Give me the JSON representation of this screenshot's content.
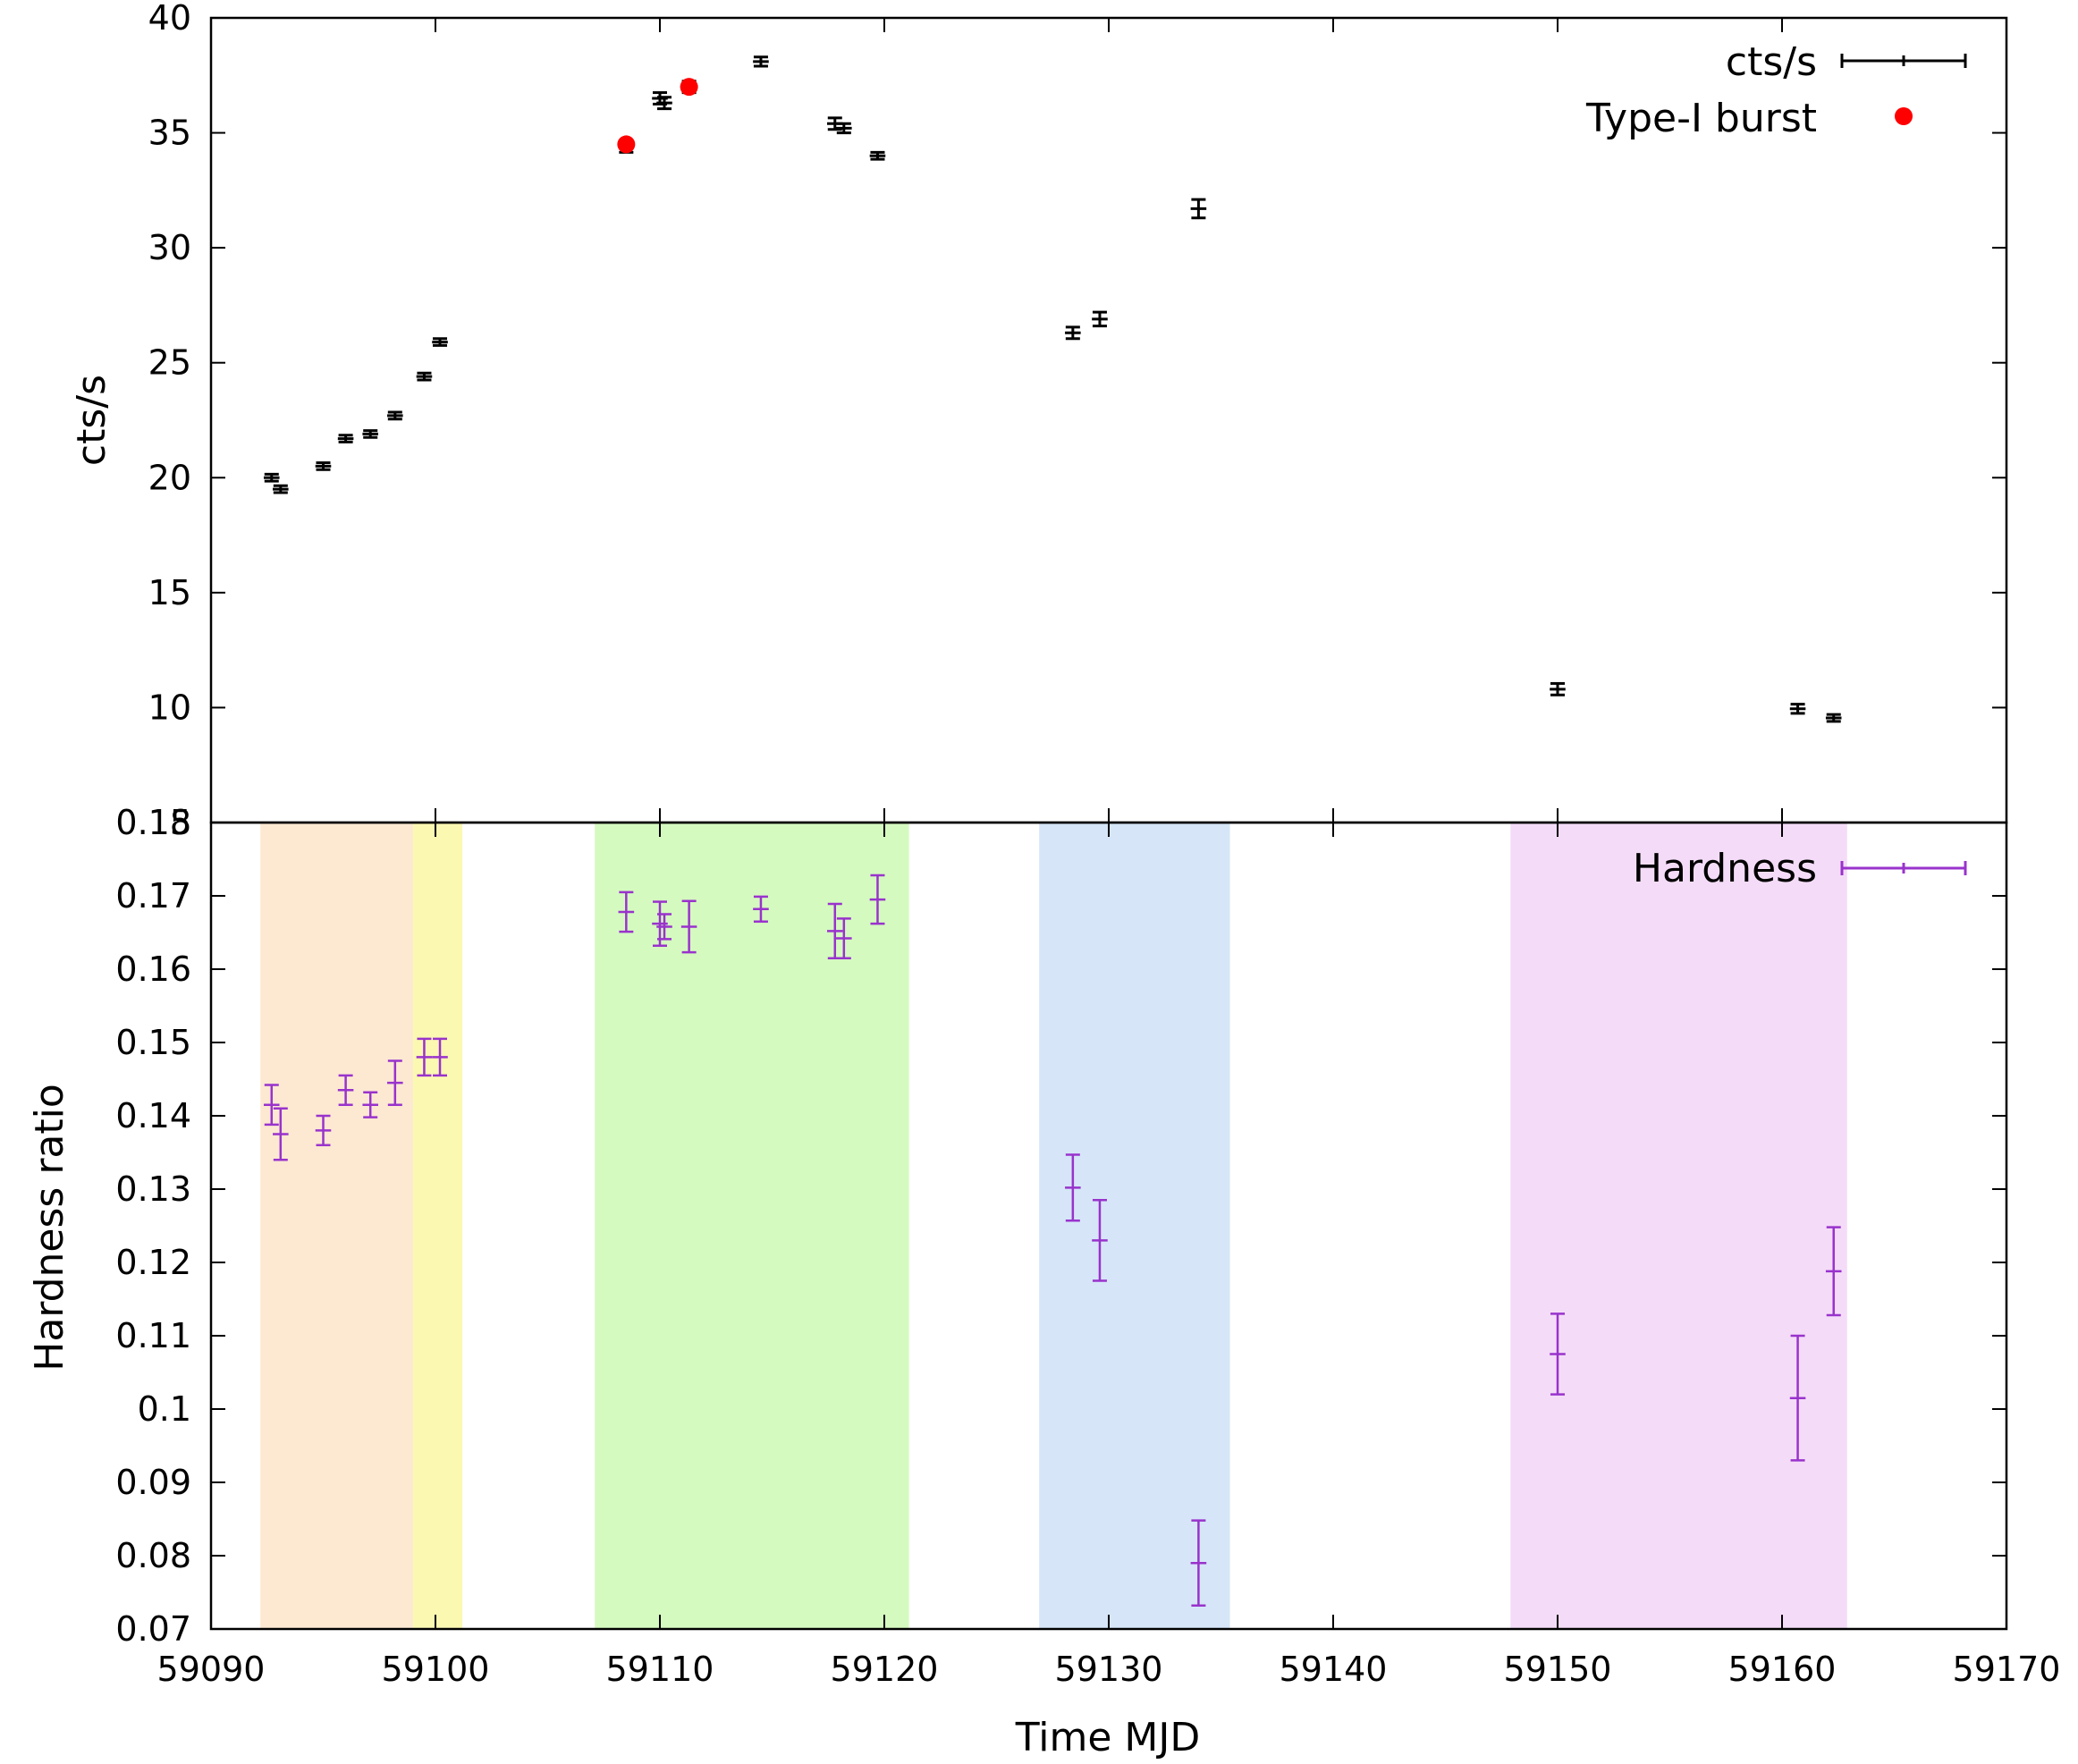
{
  "chart_data": [
    {
      "panel": "top",
      "type": "scatter",
      "ylabel": "cts/s",
      "ylim": [
        5,
        40
      ],
      "yticks": [
        5,
        10,
        15,
        20,
        25,
        30,
        35,
        40
      ],
      "xlim": [
        59090,
        59170
      ],
      "legend_position": "top-right",
      "series": [
        {
          "name": "cts/s",
          "color": "#000000",
          "marker": "errorbar",
          "points": [
            {
              "x": 59092.7,
              "y": 20.0,
              "xerr": 0.35,
              "yerr": 0.15
            },
            {
              "x": 59093.1,
              "y": 19.5,
              "xerr": 0.35,
              "yerr": 0.15
            },
            {
              "x": 59095.0,
              "y": 20.5,
              "xerr": 0.35,
              "yerr": 0.15
            },
            {
              "x": 59096.0,
              "y": 21.7,
              "xerr": 0.35,
              "yerr": 0.15
            },
            {
              "x": 59097.1,
              "y": 21.9,
              "xerr": 0.35,
              "yerr": 0.15
            },
            {
              "x": 59098.2,
              "y": 22.7,
              "xerr": 0.35,
              "yerr": 0.15
            },
            {
              "x": 59099.5,
              "y": 24.4,
              "xerr": 0.35,
              "yerr": 0.15
            },
            {
              "x": 59100.2,
              "y": 25.9,
              "xerr": 0.35,
              "yerr": 0.15
            },
            {
              "x": 59108.5,
              "y": 34.4,
              "xerr": 0.35,
              "yerr": 0.25
            },
            {
              "x": 59110.0,
              "y": 36.5,
              "xerr": 0.35,
              "yerr": 0.25
            },
            {
              "x": 59110.2,
              "y": 36.3,
              "xerr": 0.35,
              "yerr": 0.25
            },
            {
              "x": 59111.3,
              "y": 37.0,
              "xerr": 0.35,
              "yerr": 0.25
            },
            {
              "x": 59114.5,
              "y": 38.1,
              "xerr": 0.35,
              "yerr": 0.2
            },
            {
              "x": 59117.8,
              "y": 35.4,
              "xerr": 0.35,
              "yerr": 0.25
            },
            {
              "x": 59118.2,
              "y": 35.2,
              "xerr": 0.35,
              "yerr": 0.2
            },
            {
              "x": 59119.7,
              "y": 34.0,
              "xerr": 0.35,
              "yerr": 0.15
            },
            {
              "x": 59128.4,
              "y": 26.3,
              "xerr": 0.35,
              "yerr": 0.25
            },
            {
              "x": 59129.6,
              "y": 26.9,
              "xerr": 0.35,
              "yerr": 0.3
            },
            {
              "x": 59134.0,
              "y": 31.7,
              "xerr": 0.35,
              "yerr": 0.4
            },
            {
              "x": 59150.0,
              "y": 10.8,
              "xerr": 0.35,
              "yerr": 0.25
            },
            {
              "x": 59160.7,
              "y": 9.95,
              "xerr": 0.35,
              "yerr": 0.2
            },
            {
              "x": 59162.3,
              "y": 9.55,
              "xerr": 0.35,
              "yerr": 0.15
            }
          ]
        },
        {
          "name": "Type-I burst",
          "color": "#ff0000",
          "marker": "circle",
          "points": [
            {
              "x": 59108.5,
              "y": 34.5
            },
            {
              "x": 59111.3,
              "y": 37.0
            }
          ]
        }
      ]
    },
    {
      "panel": "bottom",
      "type": "scatter",
      "xlabel": "Time MJD",
      "ylabel": "Hardness ratio",
      "xlim": [
        59090,
        59170
      ],
      "ylim": [
        0.07,
        0.18
      ],
      "xticks": [
        59090,
        59100,
        59110,
        59120,
        59130,
        59140,
        59150,
        59160,
        59170
      ],
      "yticks": [
        0.07,
        0.08,
        0.09,
        0.1,
        0.11,
        0.12,
        0.13,
        0.14,
        0.15,
        0.16,
        0.17,
        0.18
      ],
      "legend_position": "top-right",
      "shaded_regions": [
        {
          "x0": 59092.2,
          "x1": 59099.0,
          "color": "#fde9d2"
        },
        {
          "x0": 59099.0,
          "x1": 59101.2,
          "color": "#fbf8b2"
        },
        {
          "x0": 59107.1,
          "x1": 59121.1,
          "color": "#d5fac0"
        },
        {
          "x0": 59126.9,
          "x1": 59135.4,
          "color": "#d6e6f8"
        },
        {
          "x0": 59147.9,
          "x1": 59162.9,
          "color": "#f4dcf8"
        }
      ],
      "series": [
        {
          "name": "Hardness",
          "color": "#9933cc",
          "marker": "errorbar",
          "points": [
            {
              "x": 59092.7,
              "y": 0.1415,
              "xerr": 0.35,
              "yerr": 0.0027
            },
            {
              "x": 59093.1,
              "y": 0.1375,
              "xerr": 0.35,
              "yerr": 0.0035
            },
            {
              "x": 59095.0,
              "y": 0.138,
              "xerr": 0.35,
              "yerr": 0.002
            },
            {
              "x": 59096.0,
              "y": 0.1435,
              "xerr": 0.35,
              "yerr": 0.002
            },
            {
              "x": 59097.1,
              "y": 0.1415,
              "xerr": 0.35,
              "yerr": 0.0017
            },
            {
              "x": 59098.2,
              "y": 0.1445,
              "xerr": 0.35,
              "yerr": 0.003
            },
            {
              "x": 59099.5,
              "y": 0.148,
              "xerr": 0.35,
              "yerr": 0.0025
            },
            {
              "x": 59100.2,
              "y": 0.148,
              "xerr": 0.35,
              "yerr": 0.0025
            },
            {
              "x": 59108.5,
              "y": 0.1678,
              "xerr": 0.35,
              "yerr": 0.0027
            },
            {
              "x": 59110.0,
              "y": 0.1662,
              "xerr": 0.35,
              "yerr": 0.003
            },
            {
              "x": 59110.2,
              "y": 0.1658,
              "xerr": 0.35,
              "yerr": 0.0017
            },
            {
              "x": 59111.3,
              "y": 0.1658,
              "xerr": 0.35,
              "yerr": 0.0035
            },
            {
              "x": 59114.5,
              "y": 0.1682,
              "xerr": 0.35,
              "yerr": 0.0017
            },
            {
              "x": 59117.8,
              "y": 0.1652,
              "xerr": 0.35,
              "yerr": 0.0037
            },
            {
              "x": 59118.2,
              "y": 0.1642,
              "xerr": 0.35,
              "yerr": 0.0027
            },
            {
              "x": 59119.7,
              "y": 0.1695,
              "xerr": 0.35,
              "yerr": 0.0033
            },
            {
              "x": 59128.4,
              "y": 0.1302,
              "xerr": 0.35,
              "yerr": 0.0045
            },
            {
              "x": 59129.6,
              "y": 0.123,
              "xerr": 0.35,
              "yerr": 0.0055
            },
            {
              "x": 59134.0,
              "y": 0.079,
              "xerr": 0.35,
              "yerr": 0.0058
            },
            {
              "x": 59150.0,
              "y": 0.1075,
              "xerr": 0.35,
              "yerr": 0.0055
            },
            {
              "x": 59160.7,
              "y": 0.1015,
              "xerr": 0.35,
              "yerr": 0.0085
            },
            {
              "x": 59162.3,
              "y": 0.1188,
              "xerr": 0.35,
              "yerr": 0.006
            }
          ]
        }
      ]
    }
  ]
}
